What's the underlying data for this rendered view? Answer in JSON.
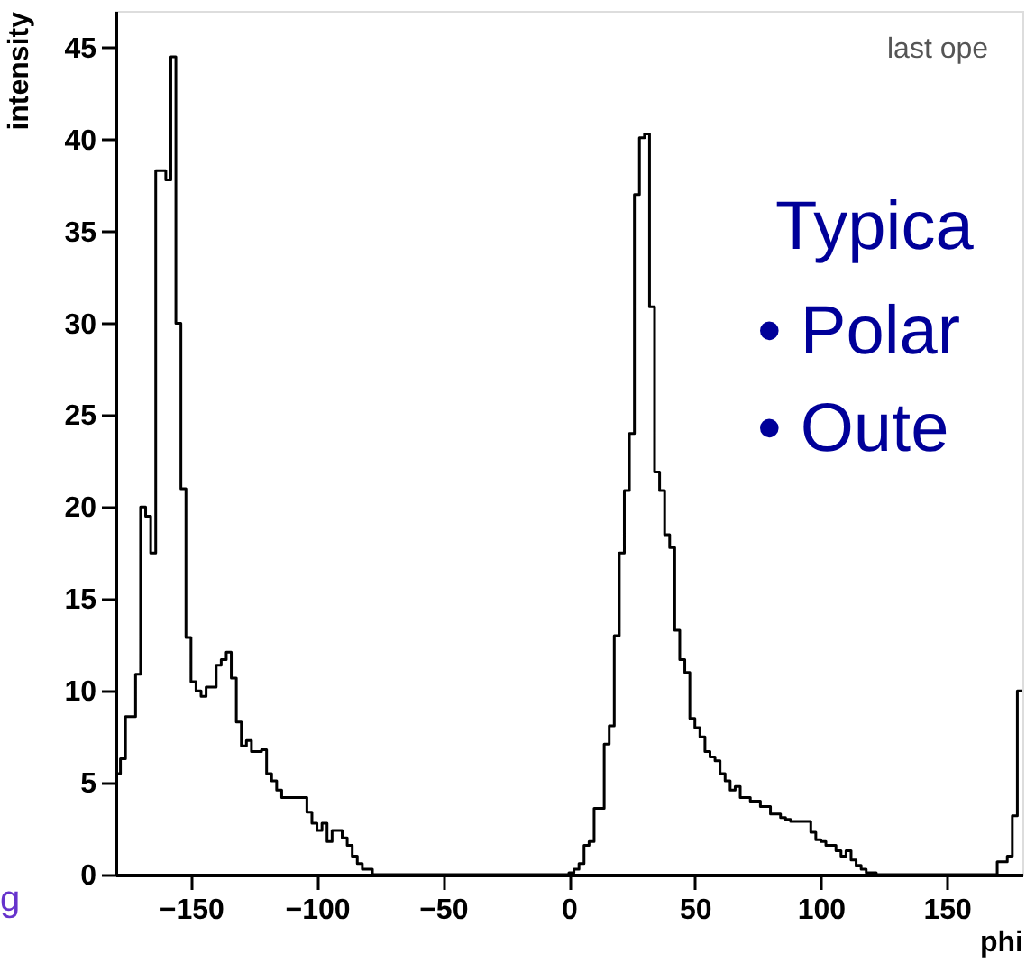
{
  "chart_data": {
    "type": "histogram",
    "xlabel": "phi",
    "ylabel": "intensity",
    "annotations": [
      "last ope",
      "Typica",
      "• Polar",
      "• Oute",
      "g"
    ],
    "xlim": [
      -180,
      180
    ],
    "ylim": [
      0,
      47
    ],
    "xticks": [
      -150,
      -100,
      -50,
      0,
      50,
      100,
      150
    ],
    "yticks": [
      0,
      5,
      10,
      15,
      20,
      25,
      30,
      35,
      40,
      45
    ],
    "grid": false,
    "color": "#000000",
    "bins": [
      -180,
      -178,
      -176,
      -174,
      -172,
      -170,
      -168,
      -166,
      -164,
      -162,
      -160,
      -158,
      -156,
      -154,
      -152,
      -150,
      -148,
      -146,
      -144,
      -142,
      -140,
      -138,
      -136,
      -134,
      -132,
      -130,
      -128,
      -126,
      -124,
      -122,
      -120,
      -118,
      -116,
      -114,
      -112,
      -110,
      -108,
      -106,
      -104,
      -102,
      -100,
      -98,
      -96,
      -94,
      -92,
      -90,
      -88,
      -86,
      -84,
      -82,
      -80,
      -78,
      -76,
      -74,
      -72,
      -70,
      -68,
      -66,
      -64,
      -62,
      -60,
      -58,
      -56,
      -54,
      -52,
      -50,
      -48,
      -46,
      -44,
      -42,
      -40,
      -38,
      -36,
      -34,
      -32,
      -30,
      -28,
      -26,
      -24,
      -22,
      -20,
      -18,
      -16,
      -14,
      -12,
      -10,
      -8,
      -6,
      -4,
      -2,
      0,
      2,
      4,
      6,
      8,
      10,
      12,
      14,
      16,
      18,
      20,
      22,
      24,
      26,
      28,
      30,
      32,
      34,
      36,
      38,
      40,
      42,
      44,
      46,
      48,
      50,
      52,
      54,
      56,
      58,
      60,
      62,
      64,
      66,
      68,
      70,
      72,
      74,
      76,
      78,
      80,
      82,
      84,
      86,
      88,
      90,
      92,
      94,
      96,
      98,
      100,
      102,
      104,
      106,
      108,
      110,
      112,
      114,
      116,
      118,
      120,
      122,
      124,
      126,
      128,
      130,
      132,
      134,
      136,
      138,
      140,
      142,
      144,
      146,
      148,
      150,
      152,
      154,
      156,
      158,
      160,
      162,
      164,
      166,
      168,
      170,
      172,
      174,
      176,
      178,
      180
    ],
    "values": [
      5.5,
      6.3,
      8.6,
      8.6,
      10.9,
      20.0,
      19.5,
      17.5,
      38.3,
      38.3,
      37.8,
      44.5,
      30,
      21,
      12.9,
      10.5,
      10.0,
      9.7,
      10.2,
      10.2,
      11.4,
      11.7,
      12.1,
      10.7,
      8.3,
      7.0,
      7.3,
      6.7,
      6.7,
      6.8,
      5.5,
      5.1,
      4.6,
      4.2,
      4.2,
      4.2,
      4.2,
      4.2,
      3.4,
      2.8,
      2.4,
      2.8,
      1.8,
      2.4,
      2.4,
      2.0,
      1.6,
      1.0,
      0.6,
      0.3,
      0.3,
      0,
      0,
      0,
      0,
      0,
      0,
      0,
      0,
      0,
      0,
      0,
      0,
      0,
      0,
      0,
      0,
      0,
      0,
      0,
      0,
      0,
      0,
      0,
      0,
      0,
      0,
      0,
      0,
      0,
      0,
      0,
      0,
      0,
      0,
      0,
      0,
      0,
      0,
      0,
      0.1,
      0.3,
      0.6,
      1.6,
      1.8,
      3.6,
      3.6,
      7.1,
      8.1,
      13.0,
      17.5,
      20.9,
      24.0,
      37.0,
      40.1,
      40.3,
      30.9,
      21.9,
      20.9,
      18.5,
      17.8,
      13.3,
      11.7,
      11.0,
      8.5,
      8.0,
      7.5,
      6.7,
      6.4,
      6.2,
      5.5,
      5.1,
      4.6,
      4.8,
      4.2,
      4.2,
      4.0,
      4.0,
      3.7,
      3.7,
      3.3,
      3.3,
      3.1,
      3.0,
      2.9,
      2.9,
      2.9,
      2.9,
      2.3,
      1.9,
      1.8,
      1.6,
      1.6,
      1.3,
      1.0,
      1.3,
      0.8,
      0.5,
      0.3,
      0.1,
      0.1,
      0,
      0,
      0,
      0,
      0,
      0,
      0,
      0,
      0,
      0,
      0,
      0,
      0,
      0,
      0,
      0,
      0,
      0,
      0,
      0,
      0,
      0,
      0,
      0,
      0.7,
      0.7,
      1.0,
      3.2,
      10.0
    ]
  }
}
